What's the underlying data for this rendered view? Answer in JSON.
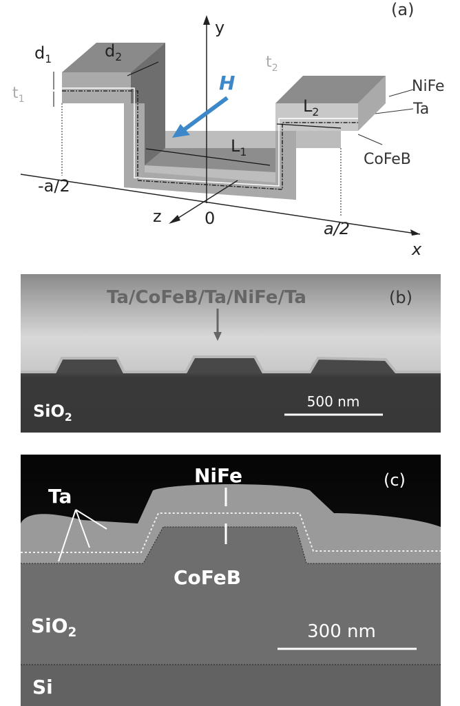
{
  "panel_a": {
    "label": "(a)",
    "axes": {
      "y": "y",
      "x": "x",
      "z": "z",
      "origin": "0"
    },
    "positions": {
      "left": "-a/2",
      "right": "a/2"
    },
    "field": "H",
    "layers": [
      "NiFe",
      "Ta",
      "CoFeB"
    ],
    "dims": [
      {
        "base": "d",
        "sub": "1"
      },
      {
        "base": "d",
        "sub": "2"
      },
      {
        "base": "t",
        "sub": "1"
      },
      {
        "base": "t",
        "sub": "2"
      },
      {
        "base": "L",
        "sub": "1"
      },
      {
        "base": "L",
        "sub": "2"
      }
    ]
  },
  "panel_b": {
    "label": "(b)",
    "stack": "Ta/CoFeB/Ta/NiFe/Ta",
    "substrate": {
      "base": "SiO",
      "sub": "2"
    },
    "scale_bar": "500 nm"
  },
  "panel_c": {
    "label": "(c)",
    "top_layer": "NiFe",
    "spacer": "Ta",
    "bottom_layer": "CoFeB",
    "substrate": {
      "base": "SiO",
      "sub": "2"
    },
    "base_layer": "Si",
    "scale_bar": "300 nm"
  }
}
